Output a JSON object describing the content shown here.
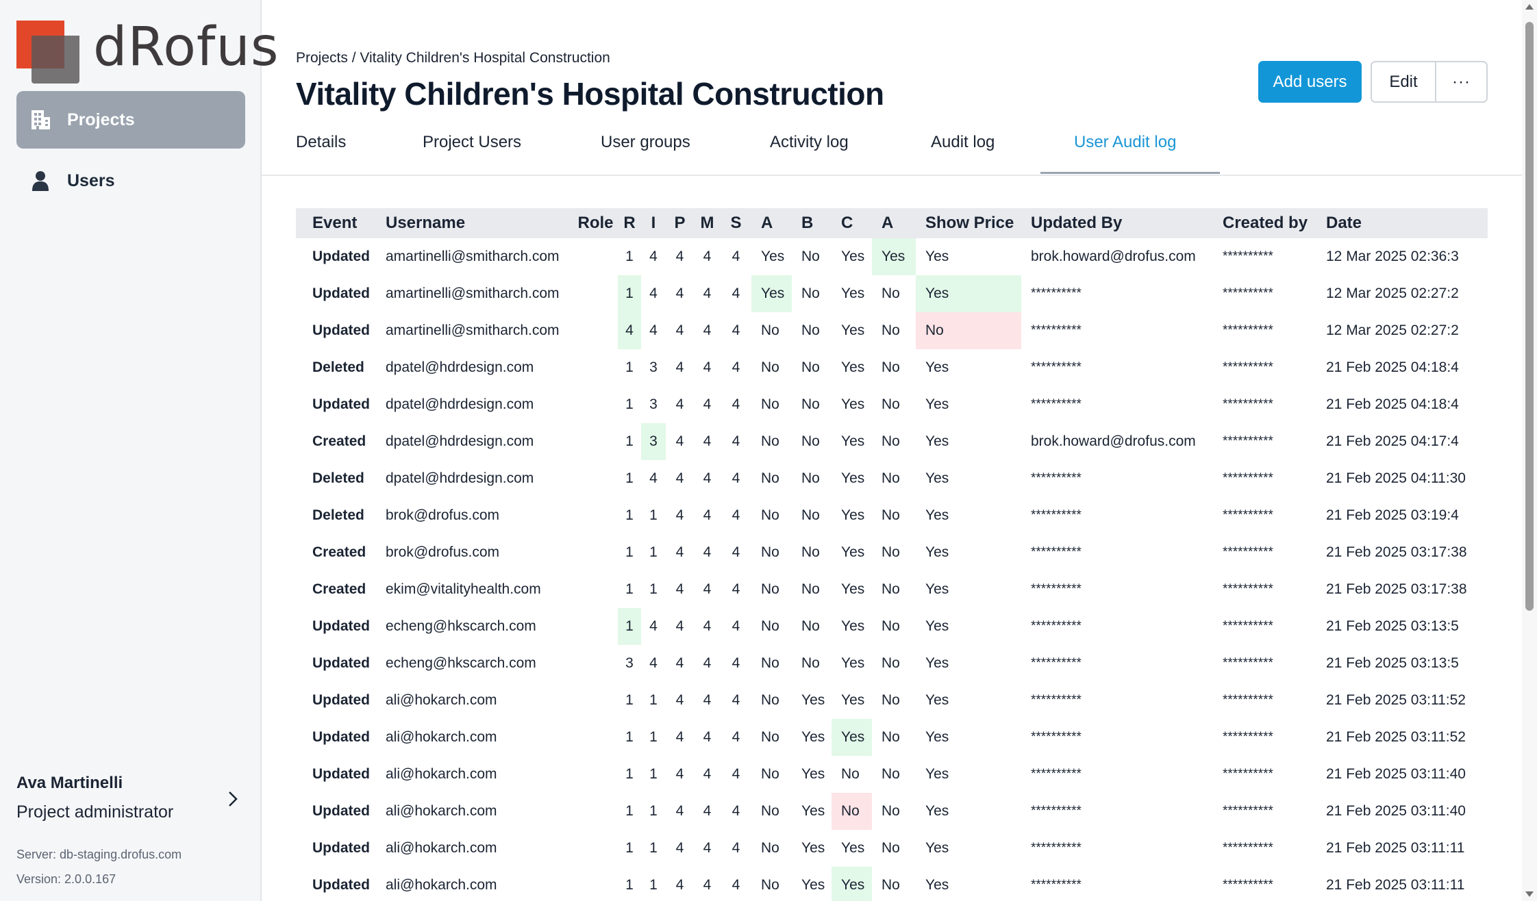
{
  "app": {
    "logo_text": "dRofus"
  },
  "sidebar": {
    "items": [
      {
        "label": "Projects",
        "icon": "building-icon",
        "active": true
      },
      {
        "label": "Users",
        "icon": "person-icon",
        "active": false
      }
    ],
    "user": {
      "name": "Ava Martinelli",
      "role": "Project administrator"
    },
    "server": "Server: db-staging.drofus.com",
    "version": "Version: 2.0.0.167"
  },
  "header": {
    "breadcrumb": "Projects / Vitality Children's Hospital Construction",
    "title": "Vitality Children's Hospital Construction",
    "add_users_label": "Add users",
    "edit_label": "Edit",
    "more_label": "···"
  },
  "tabs": [
    {
      "label": "Details",
      "active": false
    },
    {
      "label": "Project Users",
      "active": false
    },
    {
      "label": "User groups",
      "active": false
    },
    {
      "label": "Activity log",
      "active": false
    },
    {
      "label": "Audit log",
      "active": false
    },
    {
      "label": "User Audit log",
      "active": true
    }
  ],
  "colors": {
    "accent": "#1296d8",
    "highlight_added": "#e2f8e8",
    "highlight_removed": "#fde4e6",
    "sidebar_active": "#9aa3ae"
  },
  "table": {
    "columns": [
      "Event",
      "Username",
      "Role",
      "R",
      "I",
      "P",
      "M",
      "S",
      "A",
      "B",
      "C",
      "A",
      "Show Price",
      "Updated By",
      "Created by",
      "Date"
    ],
    "rows": [
      {
        "cells": [
          "Updated",
          "amartinelli@smitharch.com",
          "",
          "1",
          "4",
          "4",
          "4",
          "4",
          "Yes",
          "No",
          "Yes",
          "Yes",
          "Yes",
          "brok.howard@drofus.com",
          "**********",
          "12 Mar 2025 02:36:3"
        ],
        "hl": {
          "11": "g"
        }
      },
      {
        "cells": [
          "Updated",
          "amartinelli@smitharch.com",
          "",
          "1",
          "4",
          "4",
          "4",
          "4",
          "Yes",
          "No",
          "Yes",
          "No",
          "Yes",
          "**********",
          "**********",
          "12 Mar 2025 02:27:2"
        ],
        "hl": {
          "3": "g",
          "8": "g",
          "12": "g"
        }
      },
      {
        "cells": [
          "Updated",
          "amartinelli@smitharch.com",
          "",
          "4",
          "4",
          "4",
          "4",
          "4",
          "No",
          "No",
          "Yes",
          "No",
          "No",
          "**********",
          "**********",
          "12 Mar 2025 02:27:2"
        ],
        "hl": {
          "3": "g",
          "12": "r"
        }
      },
      {
        "cells": [
          "Deleted",
          "dpatel@hdrdesign.com",
          "",
          "1",
          "3",
          "4",
          "4",
          "4",
          "No",
          "No",
          "Yes",
          "No",
          "Yes",
          "**********",
          "**********",
          "21 Feb 2025 04:18:4"
        ],
        "hl": {}
      },
      {
        "cells": [
          "Updated",
          "dpatel@hdrdesign.com",
          "",
          "1",
          "3",
          "4",
          "4",
          "4",
          "No",
          "No",
          "Yes",
          "No",
          "Yes",
          "**********",
          "**********",
          "21 Feb 2025 04:18:4"
        ],
        "hl": {}
      },
      {
        "cells": [
          "Created",
          "dpatel@hdrdesign.com",
          "",
          "1",
          "3",
          "4",
          "4",
          "4",
          "No",
          "No",
          "Yes",
          "No",
          "Yes",
          "brok.howard@drofus.com",
          "**********",
          "21 Feb 2025 04:17:4"
        ],
        "hl": {
          "4": "g"
        }
      },
      {
        "cells": [
          "Deleted",
          "dpatel@hdrdesign.com",
          "",
          "1",
          "4",
          "4",
          "4",
          "4",
          "No",
          "No",
          "Yes",
          "No",
          "Yes",
          "**********",
          "**********",
          "21 Feb 2025 04:11:30"
        ],
        "hl": {}
      },
      {
        "cells": [
          "Deleted",
          "brok@drofus.com",
          "",
          "1",
          "1",
          "4",
          "4",
          "4",
          "No",
          "No",
          "Yes",
          "No",
          "Yes",
          "**********",
          "**********",
          "21 Feb 2025 03:19:4"
        ],
        "hl": {}
      },
      {
        "cells": [
          "Created",
          "brok@drofus.com",
          "",
          "1",
          "1",
          "4",
          "4",
          "4",
          "No",
          "No",
          "Yes",
          "No",
          "Yes",
          "**********",
          "**********",
          "21 Feb 2025 03:17:38"
        ],
        "hl": {}
      },
      {
        "cells": [
          "Created",
          "ekim@vitalityhealth.com",
          "",
          "1",
          "1",
          "4",
          "4",
          "4",
          "No",
          "No",
          "Yes",
          "No",
          "Yes",
          "**********",
          "**********",
          "21 Feb 2025 03:17:38"
        ],
        "hl": {}
      },
      {
        "cells": [
          "Updated",
          "echeng@hkscarch.com",
          "",
          "1",
          "4",
          "4",
          "4",
          "4",
          "No",
          "No",
          "Yes",
          "No",
          "Yes",
          "**********",
          "**********",
          "21 Feb 2025 03:13:5"
        ],
        "hl": {
          "3": "g"
        }
      },
      {
        "cells": [
          "Updated",
          "echeng@hkscarch.com",
          "",
          "3",
          "4",
          "4",
          "4",
          "4",
          "No",
          "No",
          "Yes",
          "No",
          "Yes",
          "**********",
          "**********",
          "21 Feb 2025 03:13:5"
        ],
        "hl": {}
      },
      {
        "cells": [
          "Updated",
          "ali@hokarch.com",
          "",
          "1",
          "1",
          "4",
          "4",
          "4",
          "No",
          "Yes",
          "Yes",
          "No",
          "Yes",
          "**********",
          "**********",
          "21 Feb 2025 03:11:52"
        ],
        "hl": {}
      },
      {
        "cells": [
          "Updated",
          "ali@hokarch.com",
          "",
          "1",
          "1",
          "4",
          "4",
          "4",
          "No",
          "Yes",
          "Yes",
          "No",
          "Yes",
          "**********",
          "**********",
          "21 Feb 2025 03:11:52"
        ],
        "hl": {
          "10": "g"
        }
      },
      {
        "cells": [
          "Updated",
          "ali@hokarch.com",
          "",
          "1",
          "1",
          "4",
          "4",
          "4",
          "No",
          "Yes",
          "No",
          "No",
          "Yes",
          "**********",
          "**********",
          "21 Feb 2025 03:11:40"
        ],
        "hl": {}
      },
      {
        "cells": [
          "Updated",
          "ali@hokarch.com",
          "",
          "1",
          "1",
          "4",
          "4",
          "4",
          "No",
          "Yes",
          "No",
          "No",
          "Yes",
          "**********",
          "**********",
          "21 Feb 2025 03:11:40"
        ],
        "hl": {
          "10": "r"
        }
      },
      {
        "cells": [
          "Updated",
          "ali@hokarch.com",
          "",
          "1",
          "1",
          "4",
          "4",
          "4",
          "No",
          "Yes",
          "Yes",
          "No",
          "Yes",
          "**********",
          "**********",
          "21 Feb 2025 03:11:11"
        ],
        "hl": {}
      },
      {
        "cells": [
          "Updated",
          "ali@hokarch.com",
          "",
          "1",
          "1",
          "4",
          "4",
          "4",
          "No",
          "Yes",
          "Yes",
          "No",
          "Yes",
          "**********",
          "**********",
          "21 Feb 2025 03:11:11"
        ],
        "hl": {
          "10": "g"
        }
      }
    ]
  }
}
